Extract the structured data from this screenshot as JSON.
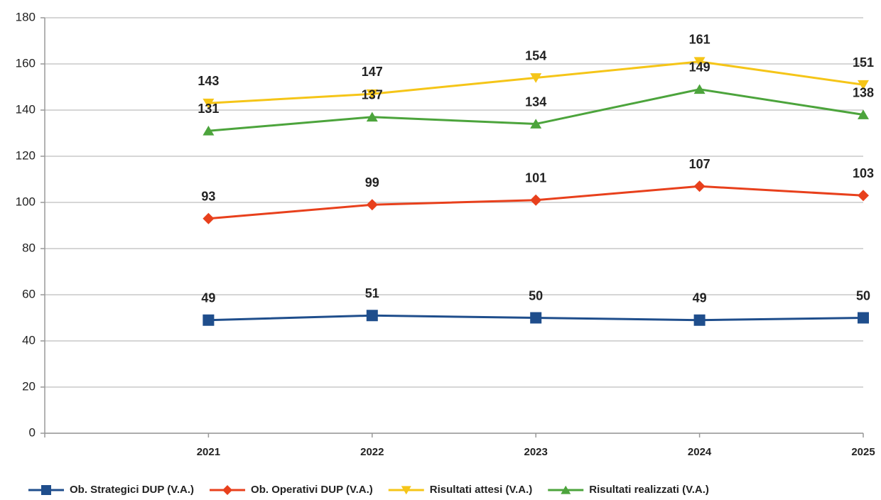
{
  "chart_data": {
    "type": "line",
    "categories": [
      null,
      "2021",
      "2022",
      "2023",
      "2024",
      "2025"
    ],
    "series": [
      {
        "name": "Ob. Strategici DUP (V.A.)",
        "color": "#1f4e8c",
        "marker": "square",
        "values": [
          null,
          49,
          51,
          50,
          49,
          50
        ]
      },
      {
        "name": "Ob. Operativi DUP (V.A.)",
        "color": "#e8401c",
        "marker": "diamond",
        "values": [
          null,
          93,
          99,
          101,
          107,
          103
        ]
      },
      {
        "name": "Risultati attesi (V.A.)",
        "color": "#f5c518",
        "marker": "triangle-down",
        "values": [
          null,
          143,
          147,
          154,
          161,
          151
        ]
      },
      {
        "name": "Risultati realizzati (V.A.)",
        "color": "#4ca43c",
        "marker": "triangle-up",
        "values": [
          null,
          131,
          137,
          134,
          149,
          138
        ]
      }
    ],
    "ylim": [
      0,
      180
    ],
    "yticks": [
      0,
      20,
      40,
      60,
      80,
      100,
      120,
      140,
      160,
      180
    ],
    "grid": true,
    "legend": "bottom"
  }
}
